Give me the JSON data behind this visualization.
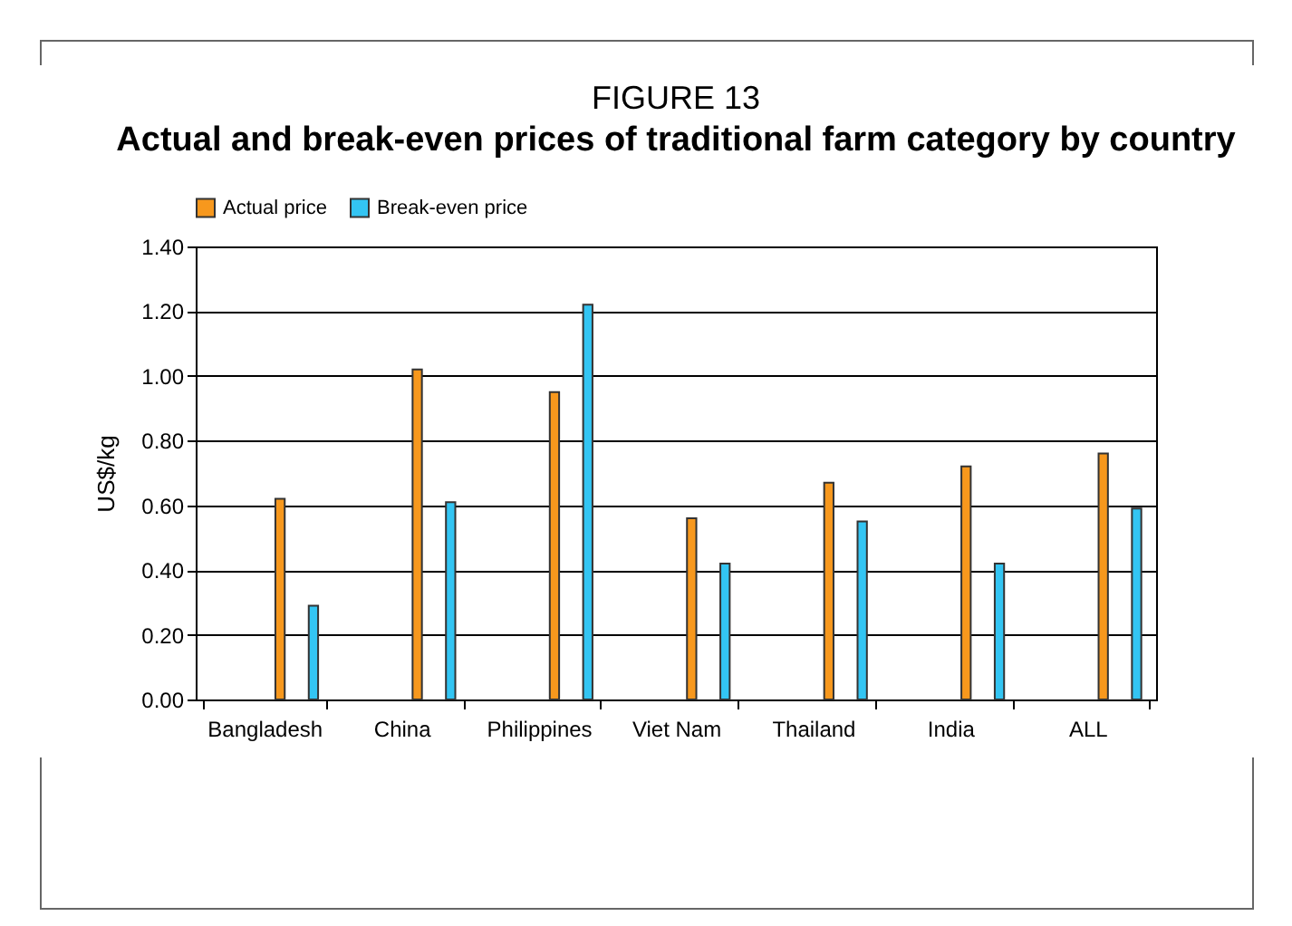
{
  "chart_data": {
    "type": "bar",
    "title": "FIGURE 13",
    "subtitle": "Actual and break-even prices of traditional farm category by country",
    "ylabel": "US$/kg",
    "categories": [
      "Bangladesh",
      "China",
      "Philippines",
      "Viet Nam",
      "Thailand",
      "India",
      "ALL"
    ],
    "series": [
      {
        "name": "Actual price",
        "color": "#f7981d",
        "values": [
          0.62,
          1.02,
          0.95,
          0.56,
          0.67,
          0.72,
          0.76
        ]
      },
      {
        "name": "Break-even price",
        "color": "#33c5f3",
        "values": [
          0.29,
          0.61,
          1.22,
          0.42,
          0.55,
          0.42,
          0.59
        ]
      }
    ],
    "ylim": [
      0,
      1.4
    ],
    "yticks": [
      {
        "value": 0,
        "label": "0.00"
      },
      {
        "value": 0.2,
        "label": "0.20"
      },
      {
        "value": 0.4,
        "label": "0.40"
      },
      {
        "value": 0.6,
        "label": "0.60"
      },
      {
        "value": 0.8,
        "label": "0.80"
      },
      {
        "value": 1,
        "label": "1.00"
      },
      {
        "value": 1.2,
        "label": "1.20"
      },
      {
        "value": 1.4,
        "label": "1.40"
      }
    ],
    "grid": "y",
    "legend": "top"
  }
}
